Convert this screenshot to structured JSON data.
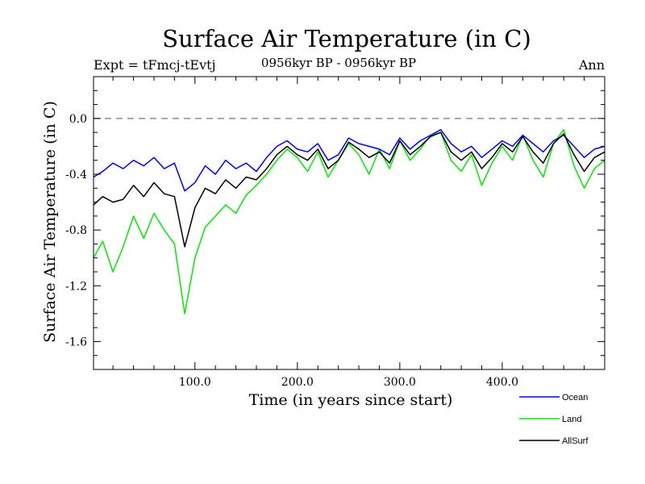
{
  "chart_data": {
    "type": "line",
    "title": "Surface Air Temperature (in C)",
    "subtitle": "0956kyr BP - 0956kyr BP",
    "experiment_label": "Expt = tFmcj-tEvtj",
    "period_label": "Ann",
    "xlabel": "Time (in years since start)",
    "ylabel": "Surface Air Temperature (in C)",
    "xlim": [
      1,
      500
    ],
    "ylim": [
      -1.8,
      0.3
    ],
    "x_ticks": [
      100,
      200,
      300,
      400
    ],
    "x_tick_labels": [
      "100.0",
      "200.0",
      "300.0",
      "400.0"
    ],
    "y_ticks": [
      -1.6,
      -1.2,
      -0.8,
      -0.4,
      0.0
    ],
    "y_tick_labels": [
      "-1.6",
      "-1.2",
      "-0.8",
      "-0.4",
      "0.0"
    ],
    "reference_line": {
      "y": 0.0,
      "style": "dashed"
    },
    "legend_position": "bottom-right",
    "series": [
      {
        "name": "Ocean",
        "color": "#0000ff",
        "x": [
          1,
          10,
          20,
          30,
          40,
          50,
          60,
          70,
          80,
          90,
          100,
          110,
          120,
          130,
          140,
          150,
          160,
          170,
          180,
          190,
          200,
          210,
          220,
          230,
          240,
          250,
          260,
          270,
          280,
          290,
          300,
          310,
          320,
          330,
          340,
          350,
          360,
          370,
          380,
          390,
          400,
          410,
          420,
          430,
          440,
          450,
          460,
          470,
          480,
          490,
          500
        ],
        "values": [
          -0.42,
          -0.38,
          -0.32,
          -0.36,
          -0.3,
          -0.34,
          -0.28,
          -0.36,
          -0.32,
          -0.52,
          -0.46,
          -0.34,
          -0.4,
          -0.3,
          -0.36,
          -0.32,
          -0.38,
          -0.28,
          -0.2,
          -0.16,
          -0.22,
          -0.24,
          -0.18,
          -0.3,
          -0.26,
          -0.14,
          -0.18,
          -0.2,
          -0.22,
          -0.26,
          -0.14,
          -0.22,
          -0.16,
          -0.12,
          -0.08,
          -0.18,
          -0.24,
          -0.2,
          -0.28,
          -0.22,
          -0.16,
          -0.2,
          -0.12,
          -0.18,
          -0.24,
          -0.16,
          -0.12,
          -0.2,
          -0.28,
          -0.22,
          -0.2
        ]
      },
      {
        "name": "Land",
        "color": "#00ee00",
        "x": [
          1,
          10,
          20,
          30,
          40,
          50,
          60,
          70,
          80,
          90,
          100,
          110,
          120,
          130,
          140,
          150,
          160,
          170,
          180,
          190,
          200,
          210,
          220,
          230,
          240,
          250,
          260,
          270,
          280,
          290,
          300,
          310,
          320,
          330,
          340,
          350,
          360,
          370,
          380,
          390,
          400,
          410,
          420,
          430,
          440,
          450,
          460,
          470,
          480,
          490,
          500
        ],
        "values": [
          -1.0,
          -0.88,
          -1.1,
          -0.92,
          -0.7,
          -0.86,
          -0.68,
          -0.8,
          -0.9,
          -1.4,
          -1.0,
          -0.78,
          -0.7,
          -0.62,
          -0.68,
          -0.55,
          -0.48,
          -0.4,
          -0.3,
          -0.22,
          -0.28,
          -0.38,
          -0.24,
          -0.42,
          -0.3,
          -0.18,
          -0.26,
          -0.4,
          -0.22,
          -0.36,
          -0.16,
          -0.3,
          -0.22,
          -0.12,
          -0.1,
          -0.3,
          -0.38,
          -0.26,
          -0.48,
          -0.32,
          -0.2,
          -0.3,
          -0.12,
          -0.3,
          -0.42,
          -0.18,
          -0.08,
          -0.34,
          -0.5,
          -0.36,
          -0.3
        ]
      },
      {
        "name": "AllSurf",
        "color": "#000000",
        "x": [
          1,
          10,
          20,
          30,
          40,
          50,
          60,
          70,
          80,
          90,
          100,
          110,
          120,
          130,
          140,
          150,
          160,
          170,
          180,
          190,
          200,
          210,
          220,
          230,
          240,
          250,
          260,
          270,
          280,
          290,
          300,
          310,
          320,
          330,
          340,
          350,
          360,
          370,
          380,
          390,
          400,
          410,
          420,
          430,
          440,
          450,
          460,
          470,
          480,
          490,
          500
        ],
        "values": [
          -0.62,
          -0.56,
          -0.6,
          -0.58,
          -0.48,
          -0.56,
          -0.46,
          -0.54,
          -0.56,
          -0.92,
          -0.64,
          -0.5,
          -0.54,
          -0.44,
          -0.5,
          -0.42,
          -0.44,
          -0.36,
          -0.26,
          -0.2,
          -0.26,
          -0.3,
          -0.22,
          -0.36,
          -0.3,
          -0.17,
          -0.22,
          -0.28,
          -0.24,
          -0.32,
          -0.16,
          -0.26,
          -0.2,
          -0.13,
          -0.1,
          -0.24,
          -0.3,
          -0.24,
          -0.36,
          -0.28,
          -0.18,
          -0.24,
          -0.13,
          -0.24,
          -0.32,
          -0.18,
          -0.11,
          -0.26,
          -0.38,
          -0.28,
          -0.24
        ]
      }
    ]
  }
}
